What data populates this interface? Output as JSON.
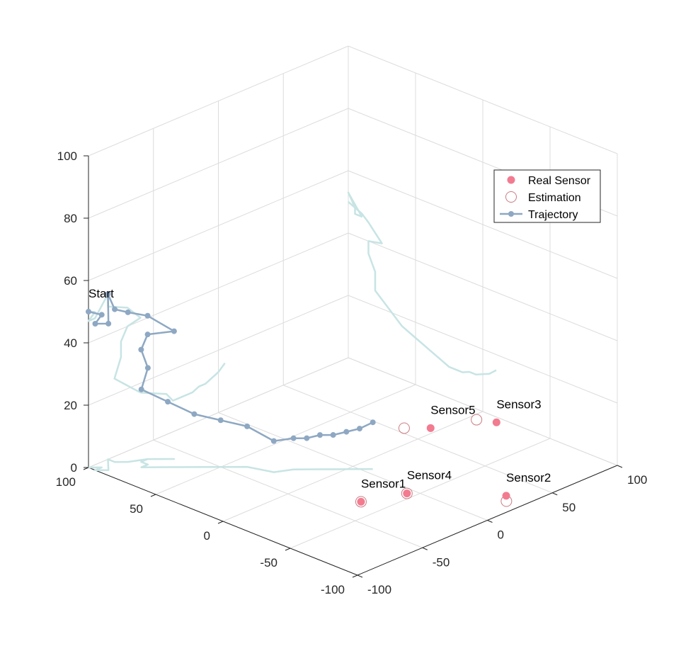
{
  "chart_data": {
    "type": "scatter",
    "title": "",
    "xlabel": "",
    "ylabel": "",
    "zlabel": "",
    "axes": {
      "x": {
        "ticks": [
          -100,
          -50,
          0,
          50,
          100
        ],
        "tick_labels": [
          "-100",
          "-50",
          "0",
          "50",
          "100"
        ],
        "range": [
          -100,
          100
        ]
      },
      "y": {
        "ticks": [
          -100,
          -50,
          0,
          50,
          100
        ],
        "tick_labels": [
          "-100",
          "-50",
          "0",
          "50",
          "100"
        ],
        "range": [
          -100,
          100
        ]
      },
      "z": {
        "ticks": [
          0,
          20,
          40,
          60,
          80,
          100
        ],
        "tick_labels": [
          "0",
          "20",
          "40",
          "60",
          "80",
          "100"
        ],
        "range": [
          0,
          100
        ]
      }
    },
    "grid": true,
    "legend_position": "top-right",
    "colors": {
      "real": "#f27b90",
      "estimation": "#cd7a82",
      "trajectory": "#8ea8c3",
      "shadow": "#c8e4e4"
    },
    "series": [
      {
        "name": "Real Sensor",
        "marker": "filled-circle",
        "points": [
          {
            "x": -30,
            "y": -35,
            "z": 0
          },
          {
            "x": 30,
            "y": -85,
            "z": 0
          },
          {
            "x": 95,
            "y": -15,
            "z": 0
          },
          {
            "x": -5,
            "y": -45,
            "z": 0
          },
          {
            "x": 65,
            "y": 5,
            "z": 0
          }
        ]
      },
      {
        "name": "Estimation",
        "marker": "open-circle",
        "points": [
          {
            "x": -30,
            "y": -35,
            "z": 0
          },
          {
            "x": 25,
            "y": -90,
            "z": 0
          },
          {
            "x": 90,
            "y": -5,
            "z": 0
          },
          {
            "x": -5,
            "y": -45,
            "z": 0
          },
          {
            "x": 55,
            "y": 15,
            "z": 0
          }
        ]
      },
      {
        "name": "Trajectory",
        "marker": "line-with-dots",
        "points": [
          {
            "x": -100,
            "y": 100,
            "z": 50
          },
          {
            "x": -95,
            "y": 95,
            "z": 49
          },
          {
            "x": -100,
            "y": 95,
            "z": 47
          },
          {
            "x": -95,
            "y": 90,
            "z": 47
          },
          {
            "x": -85,
            "y": 100,
            "z": 53
          },
          {
            "x": -85,
            "y": 95,
            "z": 49
          },
          {
            "x": -80,
            "y": 90,
            "z": 48
          },
          {
            "x": -70,
            "y": 85,
            "z": 46
          },
          {
            "x": -60,
            "y": 75,
            "z": 41
          },
          {
            "x": -70,
            "y": 85,
            "z": 40
          },
          {
            "x": -75,
            "y": 85,
            "z": 36
          },
          {
            "x": -75,
            "y": 80,
            "z": 31
          },
          {
            "x": -80,
            "y": 80,
            "z": 25
          },
          {
            "x": -70,
            "y": 70,
            "z": 21
          },
          {
            "x": -60,
            "y": 60,
            "z": 17
          },
          {
            "x": -50,
            "y": 50,
            "z": 15
          },
          {
            "x": -40,
            "y": 40,
            "z": 13
          },
          {
            "x": -35,
            "y": 25,
            "z": 10
          },
          {
            "x": -25,
            "y": 20,
            "z": 10
          },
          {
            "x": -20,
            "y": 15,
            "z": 10
          },
          {
            "x": -15,
            "y": 10,
            "z": 11
          },
          {
            "x": -10,
            "y": 5,
            "z": 11
          },
          {
            "x": -5,
            "y": 0,
            "z": 12
          },
          {
            "x": 0,
            "y": -5,
            "z": 13
          },
          {
            "x": 5,
            "y": -10,
            "z": 15
          }
        ]
      }
    ],
    "annotations": [
      {
        "text": "Start",
        "anchor": "Trajectory:0"
      },
      {
        "text": "Sensor1",
        "anchor": "Real Sensor:0"
      },
      {
        "text": "Sensor2",
        "anchor": "Real Sensor:1"
      },
      {
        "text": "Sensor3",
        "anchor": "Real Sensor:2"
      },
      {
        "text": "Sensor4",
        "anchor": "Real Sensor:3"
      },
      {
        "text": "Sensor5",
        "anchor": "Real Sensor:4"
      }
    ]
  }
}
